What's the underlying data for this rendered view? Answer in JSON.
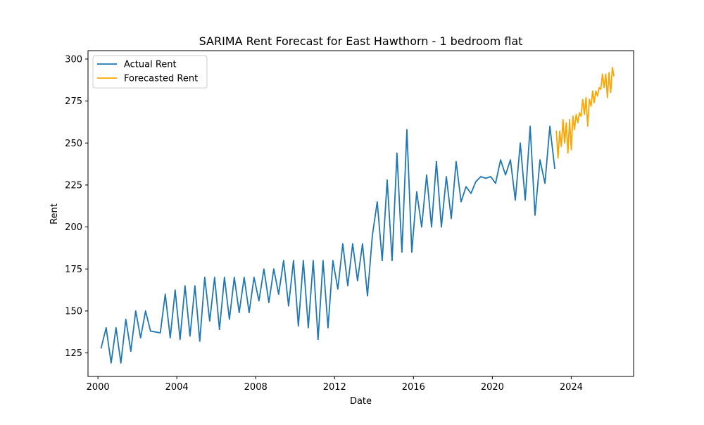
{
  "chart_data": {
    "type": "line",
    "title": "SARIMA Rent Forecast for East Hawthorn - 1 bedroom flat",
    "xlabel": "Date",
    "ylabel": "Rent",
    "xlim": [
      "1999-07-01",
      "2027-03-01"
    ],
    "ylim": [
      111,
      305
    ],
    "x_ticks": [
      "2000-01-01",
      "2004-01-01",
      "2008-01-01",
      "2012-01-01",
      "2016-01-01",
      "2020-01-01",
      "2024-01-01"
    ],
    "x_tick_labels": [
      "2000",
      "2004",
      "2008",
      "2012",
      "2016",
      "2020",
      "2024"
    ],
    "y_ticks": [
      125,
      150,
      175,
      200,
      225,
      250,
      275,
      300
    ],
    "y_tick_labels": [
      "125",
      "150",
      "175",
      "200",
      "225",
      "250",
      "275",
      "300"
    ],
    "grid": false,
    "legend_position": "top-left",
    "series": [
      {
        "name": "Actual Rent",
        "color": "#1f77b4",
        "points": [
          [
            "2000-03-01",
            128
          ],
          [
            "2000-06-01",
            140
          ],
          [
            "2000-09-01",
            119
          ],
          [
            "2000-12-01",
            140
          ],
          [
            "2001-03-01",
            119
          ],
          [
            "2001-06-01",
            145
          ],
          [
            "2001-09-01",
            126
          ],
          [
            "2001-12-01",
            150
          ],
          [
            "2002-03-01",
            134
          ],
          [
            "2002-06-01",
            150
          ],
          [
            "2002-09-01",
            138
          ],
          [
            "2003-03-01",
            137
          ],
          [
            "2003-06-01",
            160
          ],
          [
            "2003-09-01",
            134
          ],
          [
            "2003-12-01",
            162.5
          ],
          [
            "2004-03-01",
            133
          ],
          [
            "2004-06-01",
            165
          ],
          [
            "2004-09-01",
            135
          ],
          [
            "2004-12-01",
            165
          ],
          [
            "2005-03-01",
            132
          ],
          [
            "2005-06-01",
            170
          ],
          [
            "2005-09-01",
            144
          ],
          [
            "2005-12-01",
            170
          ],
          [
            "2006-03-01",
            139
          ],
          [
            "2006-06-01",
            170
          ],
          [
            "2006-09-01",
            145
          ],
          [
            "2006-12-01",
            170
          ],
          [
            "2007-03-01",
            149
          ],
          [
            "2007-06-01",
            170
          ],
          [
            "2007-09-01",
            149
          ],
          [
            "2007-12-01",
            170
          ],
          [
            "2008-03-01",
            156
          ],
          [
            "2008-06-01",
            175
          ],
          [
            "2008-09-01",
            155
          ],
          [
            "2008-12-01",
            175
          ],
          [
            "2009-03-01",
            160
          ],
          [
            "2009-06-01",
            180
          ],
          [
            "2009-09-01",
            153
          ],
          [
            "2009-12-01",
            180
          ],
          [
            "2010-03-01",
            141
          ],
          [
            "2010-06-01",
            180
          ],
          [
            "2010-09-01",
            140
          ],
          [
            "2010-12-01",
            180
          ],
          [
            "2011-03-01",
            133
          ],
          [
            "2011-06-01",
            180
          ],
          [
            "2011-09-01",
            140
          ],
          [
            "2011-12-01",
            180
          ],
          [
            "2012-03-01",
            163
          ],
          [
            "2012-06-01",
            190
          ],
          [
            "2012-09-01",
            165
          ],
          [
            "2012-12-01",
            190
          ],
          [
            "2013-03-01",
            168
          ],
          [
            "2013-06-01",
            190
          ],
          [
            "2013-09-01",
            159
          ],
          [
            "2013-12-01",
            195
          ],
          [
            "2014-03-01",
            215
          ],
          [
            "2014-06-01",
            180
          ],
          [
            "2014-09-01",
            228
          ],
          [
            "2014-12-01",
            180
          ],
          [
            "2015-03-01",
            244
          ],
          [
            "2015-06-01",
            185
          ],
          [
            "2015-09-01",
            258
          ],
          [
            "2015-12-01",
            185
          ],
          [
            "2016-03-01",
            221
          ],
          [
            "2016-06-01",
            200
          ],
          [
            "2016-09-01",
            231
          ],
          [
            "2016-12-01",
            200
          ],
          [
            "2017-03-01",
            239
          ],
          [
            "2017-06-01",
            200
          ],
          [
            "2017-09-01",
            230
          ],
          [
            "2017-12-01",
            205
          ],
          [
            "2018-03-01",
            239
          ],
          [
            "2018-06-01",
            215
          ],
          [
            "2018-09-01",
            224
          ],
          [
            "2018-12-01",
            220
          ],
          [
            "2019-03-01",
            227
          ],
          [
            "2019-06-01",
            230
          ],
          [
            "2019-09-01",
            229
          ],
          [
            "2019-12-01",
            230
          ],
          [
            "2020-03-01",
            226
          ],
          [
            "2020-06-01",
            240
          ],
          [
            "2020-09-01",
            231
          ],
          [
            "2020-12-01",
            240
          ],
          [
            "2021-03-01",
            216
          ],
          [
            "2021-06-01",
            250
          ],
          [
            "2021-09-01",
            216
          ],
          [
            "2021-12-01",
            260
          ],
          [
            "2022-03-01",
            207
          ],
          [
            "2022-06-01",
            240
          ],
          [
            "2022-09-01",
            226
          ],
          [
            "2022-12-01",
            260
          ],
          [
            "2023-03-01",
            235
          ]
        ]
      },
      {
        "name": "Forecasted Rent",
        "color": "#ffa500",
        "points": [
          [
            "2023-04-01",
            257
          ],
          [
            "2023-05-01",
            241
          ],
          [
            "2023-06-01",
            257
          ],
          [
            "2023-07-01",
            248
          ],
          [
            "2023-08-01",
            264
          ],
          [
            "2023-09-01",
            250
          ],
          [
            "2023-10-01",
            262
          ],
          [
            "2023-11-01",
            244
          ],
          [
            "2023-12-01",
            264
          ],
          [
            "2024-01-01",
            246
          ],
          [
            "2024-02-01",
            266
          ],
          [
            "2024-03-01",
            258
          ],
          [
            "2024-04-01",
            267
          ],
          [
            "2024-05-01",
            262
          ],
          [
            "2024-06-01",
            268
          ],
          [
            "2024-07-01",
            266
          ],
          [
            "2024-08-01",
            276
          ],
          [
            "2024-09-01",
            267
          ],
          [
            "2024-10-01",
            277
          ],
          [
            "2024-11-01",
            260
          ],
          [
            "2024-12-01",
            276
          ],
          [
            "2025-01-01",
            272
          ],
          [
            "2025-02-01",
            281
          ],
          [
            "2025-03-01",
            274
          ],
          [
            "2025-04-01",
            281
          ],
          [
            "2025-05-01",
            278
          ],
          [
            "2025-06-01",
            283
          ],
          [
            "2025-07-01",
            282
          ],
          [
            "2025-08-01",
            291
          ],
          [
            "2025-09-01",
            283
          ],
          [
            "2025-10-01",
            291
          ],
          [
            "2025-11-01",
            277
          ],
          [
            "2025-12-01",
            292
          ],
          [
            "2026-01-01",
            280
          ],
          [
            "2026-02-01",
            295
          ],
          [
            "2026-03-01",
            290
          ]
        ]
      }
    ]
  }
}
